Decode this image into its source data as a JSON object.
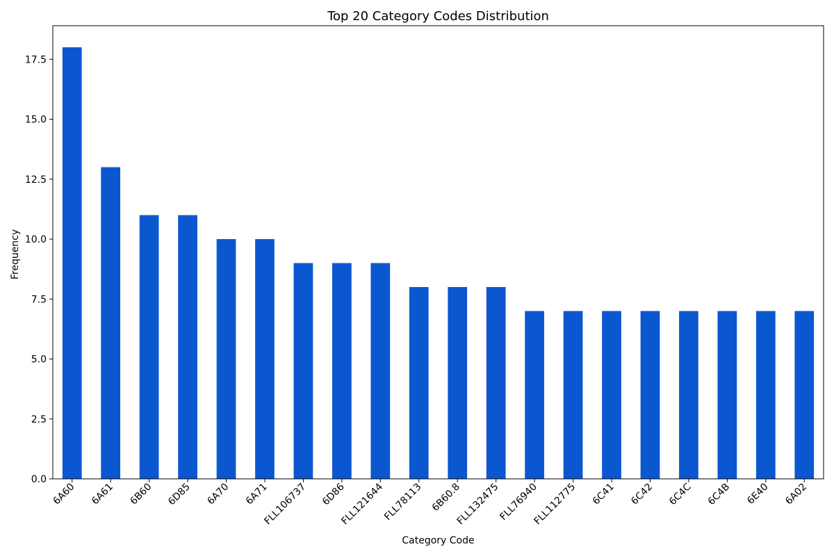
{
  "chart_data": {
    "type": "bar",
    "title": "Top 20 Category Codes Distribution",
    "xlabel": "Category Code",
    "ylabel": "Frequency",
    "categories": [
      "6A60",
      "6A61",
      "6B60",
      "6D85",
      "6A70",
      "6A71",
      "FLL106737",
      "6D86",
      "FLL121644",
      "FLL78113",
      "6B60.8",
      "FLL132475",
      "FLL76940",
      "FLL112775",
      "6C41",
      "6C42",
      "6C4C",
      "6C4B",
      "6E40",
      "6A02"
    ],
    "values": [
      18,
      13,
      11,
      11,
      10,
      10,
      9,
      9,
      9,
      8,
      8,
      8,
      7,
      7,
      7,
      7,
      7,
      7,
      7,
      7
    ],
    "ylim": [
      0,
      18.9
    ],
    "yticks": [
      "0.0",
      "2.5",
      "5.0",
      "7.5",
      "10.0",
      "12.5",
      "15.0",
      "17.5"
    ],
    "bar_color": "#0b57d0",
    "grid": false,
    "legend": false
  }
}
